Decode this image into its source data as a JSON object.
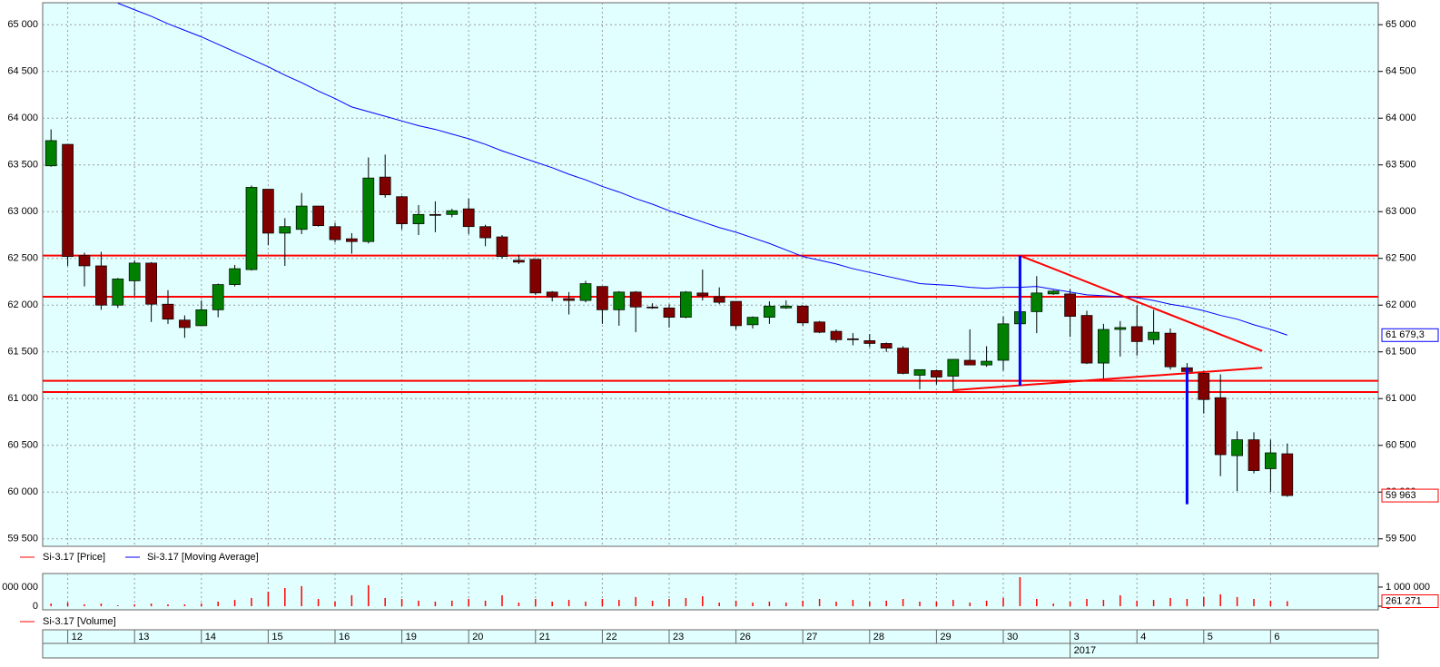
{
  "chart_data": [
    {
      "type": "candlestick",
      "categories": [
        null,
        "12",
        null,
        null,
        null,
        "13",
        null,
        null,
        null,
        "14",
        null,
        null,
        null,
        "15",
        null,
        null,
        null,
        "16",
        null,
        null,
        null,
        "19",
        null,
        null,
        null,
        "20",
        null,
        null,
        null,
        "21",
        null,
        null,
        null,
        "22",
        null,
        null,
        null,
        "23",
        null,
        null,
        null,
        "26",
        null,
        null,
        null,
        "27",
        null,
        null,
        null,
        "28",
        null,
        null,
        null,
        "29",
        null,
        null,
        null,
        "30",
        null,
        null,
        null,
        "3",
        null,
        null,
        null,
        "4",
        null,
        null,
        null,
        "5",
        null,
        null,
        null,
        "6",
        null
      ],
      "year_categories": [
        null,
        null,
        null,
        null,
        null,
        null,
        null,
        null,
        null,
        null,
        null,
        null,
        null,
        null,
        null,
        null,
        null,
        null,
        null,
        null,
        null,
        null,
        null,
        null,
        null,
        null,
        null,
        null,
        null,
        null,
        null,
        null,
        null,
        null,
        null,
        null,
        null,
        null,
        null,
        null,
        null,
        null,
        null,
        null,
        null,
        null,
        null,
        null,
        null,
        null,
        null,
        null,
        null,
        null,
        null,
        null,
        null,
        null,
        null,
        null,
        null,
        "2017",
        null,
        null,
        null,
        null,
        null,
        null,
        null,
        null,
        null,
        null,
        null,
        null,
        null
      ],
      "ylim": [
        59420,
        65235
      ],
      "yticks": [
        {
          "value": 59500,
          "label": "59 500"
        },
        {
          "value": 60000,
          "label": "60 000"
        },
        {
          "value": 60500,
          "label": "60 500"
        },
        {
          "value": 61000,
          "label": "61 000"
        },
        {
          "value": 61500,
          "label": "61 500"
        },
        {
          "value": 62000,
          "label": "62 000"
        },
        {
          "value": 62500,
          "label": "62 500"
        },
        {
          "value": 63000,
          "label": "63 000"
        },
        {
          "value": 63500,
          "label": "63 500"
        },
        {
          "value": 64000,
          "label": "64 000"
        },
        {
          "value": 64500,
          "label": "64 500"
        },
        {
          "value": 65000,
          "label": "65 000"
        }
      ],
      "grid": true,
      "series": [
        {
          "name": "Si-3.17 [Price]",
          "type": "candlestick",
          "color": "#ff0000",
          "up_color": "#008000",
          "down_color": "#800000",
          "open": [
            63490,
            63720,
            62530,
            62420,
            62000,
            62260,
            62450,
            62010,
            61840,
            61780,
            61950,
            62220,
            62380,
            63240,
            62770,
            62810,
            63060,
            62840,
            62710,
            62680,
            63370,
            63160,
            62870,
            62970,
            62970,
            63030,
            62840,
            62730,
            62480,
            62490,
            62140,
            62070,
            62050,
            62200,
            61950,
            62140,
            61980,
            61970,
            61870,
            62130,
            62090,
            62040,
            61790,
            61870,
            61970,
            61990,
            61820,
            61720,
            61640,
            61620,
            61590,
            61540,
            61250,
            61300,
            61240,
            61410,
            61360,
            61410,
            61800,
            61930,
            62120,
            62120,
            61890,
            61380,
            61740,
            61770,
            61630,
            61700,
            61330,
            61270,
            61010,
            60390,
            60560,
            60250,
            60410
          ],
          "high": [
            63880,
            63720,
            62560,
            62570,
            62290,
            62480,
            62460,
            62160,
            61890,
            62050,
            62230,
            62430,
            63280,
            63240,
            62930,
            63200,
            63060,
            62880,
            62770,
            63580,
            63610,
            63170,
            63070,
            63110,
            63030,
            63140,
            62860,
            62750,
            62540,
            62490,
            62150,
            62140,
            62260,
            62200,
            62150,
            62150,
            62020,
            62010,
            62150,
            62380,
            62190,
            62040,
            61880,
            62040,
            62050,
            62000,
            61830,
            61740,
            61700,
            61690,
            61600,
            61560,
            61310,
            61310,
            61420,
            61740,
            61560,
            61880,
            62060,
            62310,
            62160,
            62170,
            61940,
            61800,
            61830,
            62000,
            61950,
            61750,
            61380,
            61300,
            61260,
            60650,
            60640,
            60560,
            60520
          ],
          "low": [
            63480,
            62420,
            62200,
            61950,
            61970,
            62100,
            61820,
            61800,
            61650,
            61780,
            61870,
            62200,
            62370,
            62640,
            62420,
            62760,
            62840,
            62670,
            62550,
            62660,
            63150,
            62810,
            62750,
            62780,
            62940,
            62760,
            62630,
            62500,
            62440,
            62110,
            62040,
            61900,
            62030,
            61800,
            61780,
            61710,
            61960,
            61760,
            61860,
            62050,
            62010,
            61740,
            61750,
            61800,
            61960,
            61780,
            61700,
            61600,
            61570,
            61550,
            61500,
            61260,
            61100,
            61150,
            61080,
            61360,
            61340,
            61300,
            61630,
            61700,
            62110,
            61660,
            61370,
            61200,
            61450,
            61460,
            61580,
            61310,
            61240,
            60840,
            60170,
            60010,
            60200,
            60000,
            59950
          ],
          "close": [
            63760,
            62520,
            62420,
            62000,
            62280,
            62450,
            62010,
            61850,
            61760,
            61950,
            62220,
            62390,
            63260,
            62770,
            62840,
            63060,
            62850,
            62700,
            62680,
            63360,
            63180,
            62870,
            62970,
            62960,
            63010,
            62840,
            62720,
            62520,
            62460,
            62130,
            62090,
            62050,
            62230,
            61950,
            62140,
            61980,
            61970,
            61870,
            62140,
            62100,
            62030,
            61780,
            61870,
            61990,
            61990,
            61810,
            61710,
            61630,
            61630,
            61590,
            61540,
            61270,
            61310,
            61230,
            61420,
            61360,
            61400,
            61800,
            61930,
            62130,
            62150,
            61880,
            61380,
            61740,
            61760,
            61610,
            61710,
            61340,
            61290,
            60990,
            60400,
            60560,
            60230,
            60420,
            59963
          ],
          "last_label": "59 963"
        },
        {
          "name": "Si-3.17 [Moving Average]",
          "type": "line",
          "color": "#0000ff",
          "values": [
            null,
            null,
            null,
            null,
            65230,
            65160,
            65090,
            65010,
            64940,
            64870,
            64790,
            64710,
            64630,
            64550,
            64460,
            64380,
            64290,
            64210,
            64120,
            64070,
            64020,
            63970,
            63920,
            63880,
            63830,
            63780,
            63720,
            63650,
            63590,
            63530,
            63470,
            63400,
            63340,
            63270,
            63210,
            63140,
            63080,
            63010,
            62950,
            62890,
            62830,
            62780,
            62720,
            62660,
            62590,
            62520,
            62480,
            62440,
            62390,
            62350,
            62310,
            62270,
            62230,
            62220,
            62210,
            62190,
            62180,
            62190,
            62190,
            62200,
            62170,
            62140,
            62110,
            62100,
            62090,
            62080,
            62050,
            62010,
            61980,
            61940,
            61890,
            61850,
            61790,
            61740,
            61679.3
          ],
          "last_label": "61 679,3"
        }
      ],
      "levels": {
        "color": "#ff0000",
        "values": [
          62530,
          62090,
          61190,
          61070
        ]
      },
      "drawn_lines": [
        {
          "color": "#ff0000",
          "x": [
            58,
            72.5
          ],
          "y": [
            62530,
            61510
          ]
        },
        {
          "color": "#ff0000",
          "x": [
            54,
            72.5
          ],
          "y": [
            61090,
            61330
          ]
        },
        {
          "color": "#0000ff",
          "x": [
            58,
            58
          ],
          "y": [
            62530,
            61140
          ]
        },
        {
          "color": "#0000ff",
          "x": [
            68,
            68
          ],
          "y": [
            61330,
            59870
          ]
        }
      ]
    },
    {
      "type": "bar",
      "ylim": [
        -190000,
        1710000
      ],
      "yticks": [
        0,
        {
          "value": 1000000,
          "label": "1 000 000"
        }
      ],
      "series": [
        {
          "name": "Si-3.17 [Volume]",
          "color": "#ff0000",
          "values": [
            140000,
            190000,
            95000,
            140000,
            48000,
            95000,
            140000,
            95000,
            95000,
            140000,
            240000,
            330000,
            430000,
            760000,
            950000,
            1050000,
            380000,
            240000,
            570000,
            1100000,
            430000,
            380000,
            290000,
            240000,
            290000,
            380000,
            290000,
            570000,
            190000,
            380000,
            240000,
            330000,
            240000,
            380000,
            330000,
            480000,
            290000,
            380000,
            430000,
            520000,
            190000,
            290000,
            190000,
            240000,
            190000,
            290000,
            380000,
            240000,
            330000,
            240000,
            290000,
            380000,
            240000,
            240000,
            330000,
            190000,
            290000,
            430000,
            1520000,
            380000,
            140000,
            240000,
            380000,
            330000,
            570000,
            290000,
            330000,
            430000,
            380000,
            480000,
            620000,
            480000,
            380000,
            290000,
            261271
          ],
          "last_label": "261 271"
        }
      ]
    }
  ]
}
